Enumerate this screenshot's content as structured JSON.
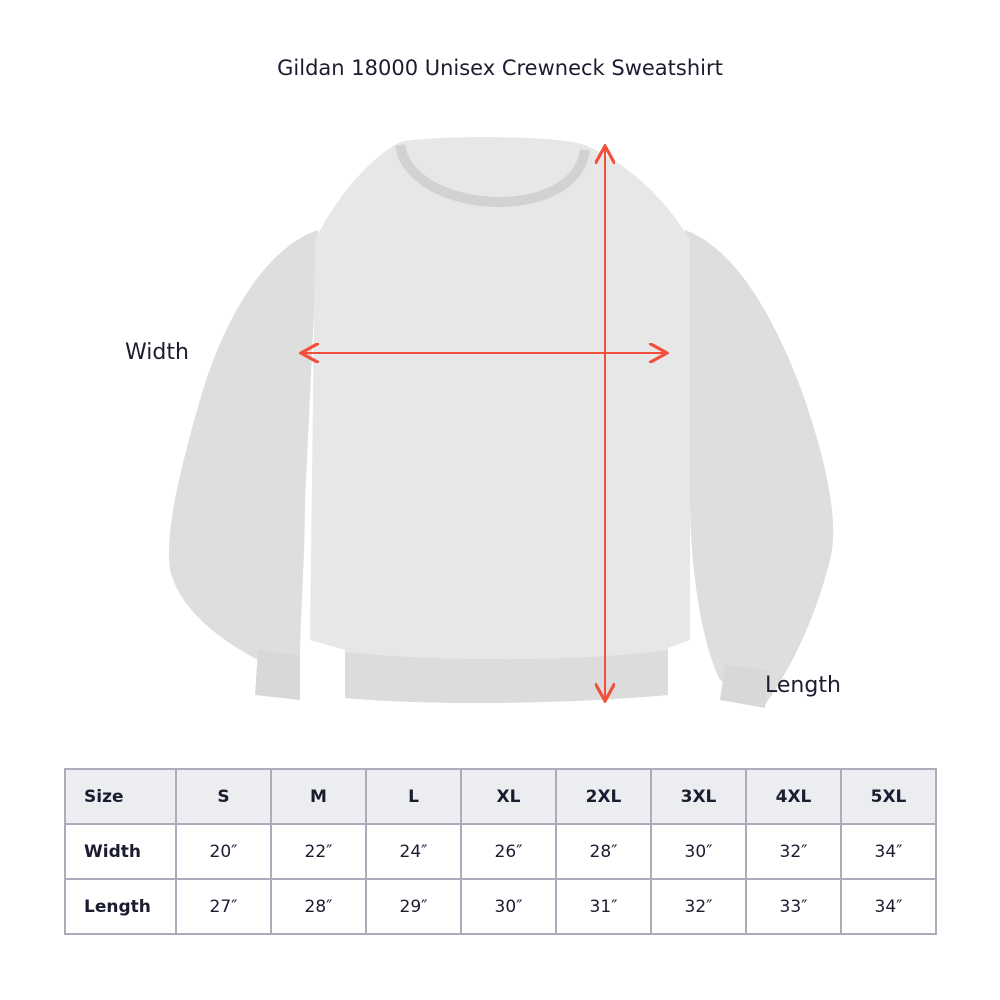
{
  "title": "Gildan 18000 Unisex Crewneck Sweatshirt",
  "labels": {
    "width": "Width",
    "length": "Length"
  },
  "colors": {
    "arrow": "#f0503c",
    "garment": "#e6e6e6",
    "header_bg": "#ecedf1",
    "border": "#ababbb"
  },
  "table": {
    "header": [
      "Size",
      "S",
      "M",
      "L",
      "XL",
      "2XL",
      "3XL",
      "4XL",
      "5XL"
    ],
    "rows": [
      [
        "Width",
        "20″",
        "22″",
        "24″",
        "26″",
        "28″",
        "30″",
        "32″",
        "34″"
      ],
      [
        "Length",
        "27″",
        "28″",
        "29″",
        "30″",
        "31″",
        "32″",
        "33″",
        "34″"
      ]
    ]
  }
}
